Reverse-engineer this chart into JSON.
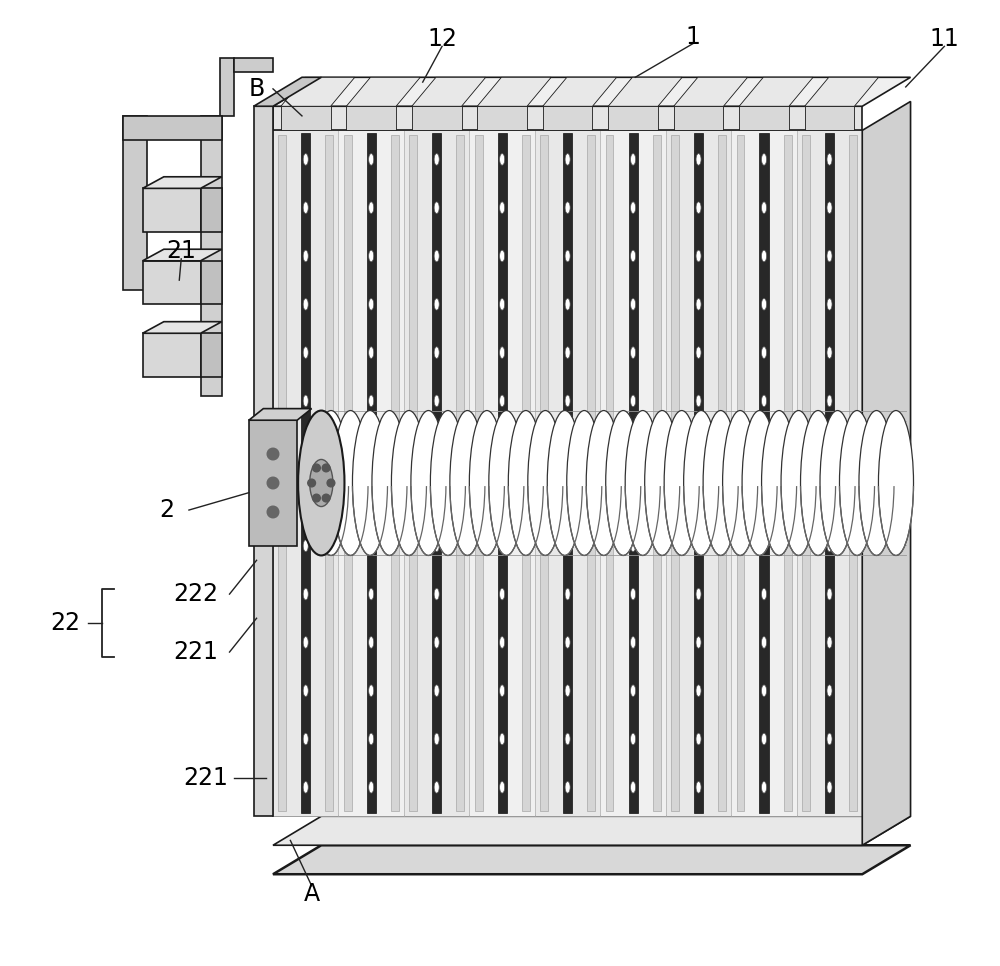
{
  "bg_color": "#ffffff",
  "line_color": "#333333",
  "dark_color": "#1a1a1a",
  "light_gray": "#c8c8c8",
  "mid_gray": "#888888",
  "label_fontsize": 17,
  "figsize": [
    10.0,
    9.66
  ],
  "dpi": 100
}
